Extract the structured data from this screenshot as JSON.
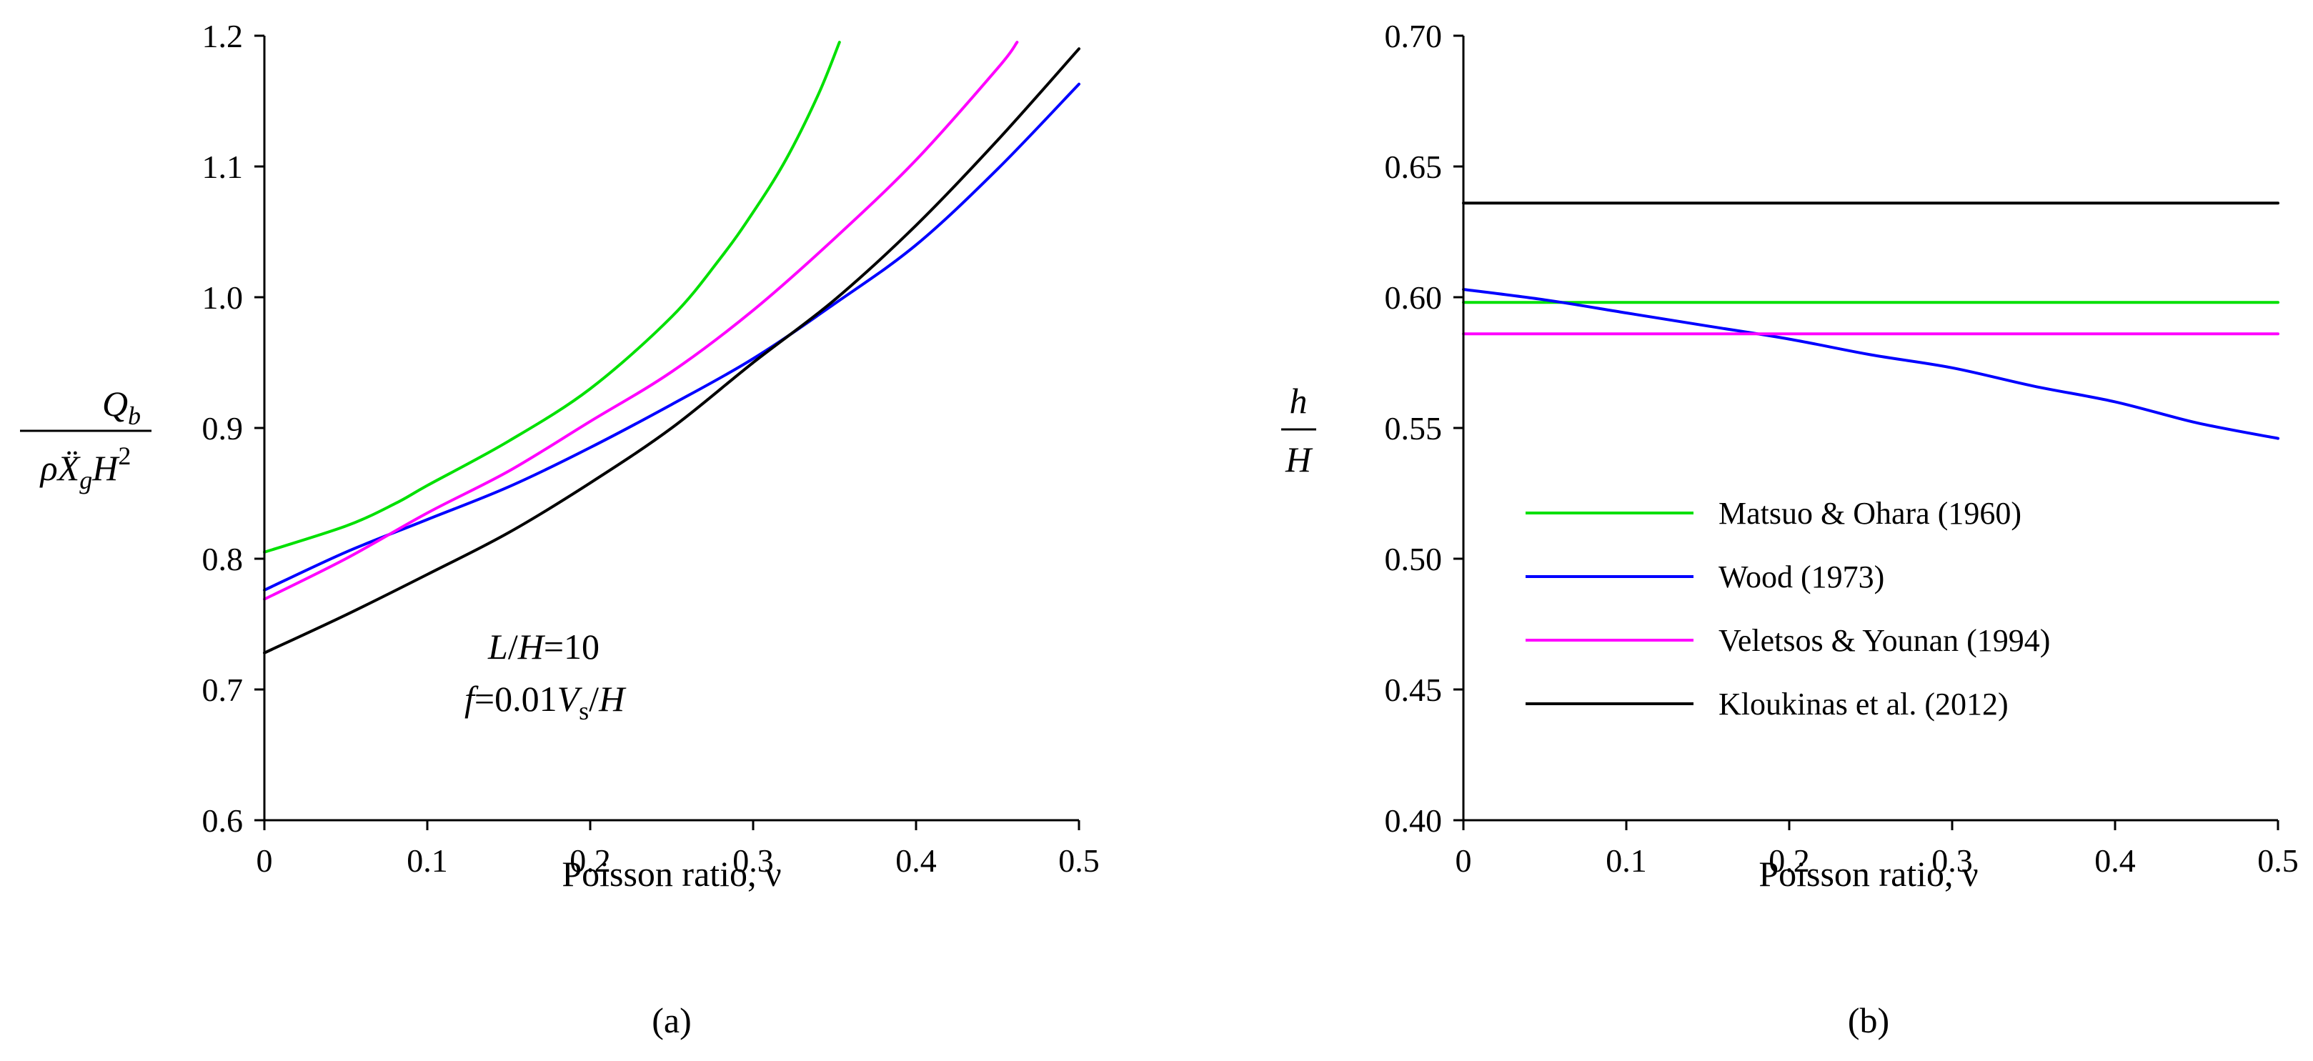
{
  "chart_data": [
    {
      "id": "a",
      "type": "line",
      "caption": "(a)",
      "xlabel": "Poisson ratio, ν",
      "ylabel": {
        "numerator": "Qb",
        "denominator": "ρẌgH2",
        "num_main": "Q",
        "num_sub": "b",
        "den_main1": "ρẌ",
        "den_sub": "g",
        "den_main2": "H",
        "den_sup": "2"
      },
      "xlim": [
        0,
        0.5
      ],
      "ylim": [
        0.6,
        1.2
      ],
      "xticks": [
        0,
        0.1,
        0.2,
        0.3,
        0.4,
        0.5
      ],
      "xtick_labels": [
        "0",
        "0.1",
        "0.2",
        "0.3",
        "0.4",
        "0.5"
      ],
      "yticks": [
        0.6,
        0.7,
        0.8,
        0.9,
        1.0,
        1.1,
        1.2
      ],
      "ytick_labels": [
        "0.6",
        "0.7",
        "0.8",
        "0.9",
        "1.0",
        "1.1",
        "1.2"
      ],
      "annotations": {
        "line1": {
          "italic1": "L",
          "t1": "/",
          "italic2": "H",
          "t2": "=10"
        },
        "line2": {
          "italic1": "f",
          "t1": "=0.01",
          "italic2": "V",
          "sub": "s",
          "t2": "/",
          "italic3": "H"
        }
      },
      "series": [
        {
          "name": "Matsuo & Ohara (1960)",
          "color": "#00e000",
          "x": [
            0,
            0.05,
            0.08,
            0.1,
            0.15,
            0.2,
            0.25,
            0.28,
            0.3,
            0.32,
            0.34,
            0.353
          ],
          "y": [
            0.805,
            0.825,
            0.842,
            0.856,
            0.89,
            0.93,
            0.985,
            1.03,
            1.065,
            1.105,
            1.155,
            1.195
          ]
        },
        {
          "name": "Wood (1973)",
          "color": "#0000ff",
          "x": [
            0,
            0.05,
            0.1,
            0.15,
            0.2,
            0.25,
            0.3,
            0.35,
            0.4,
            0.45,
            0.5
          ],
          "y": [
            0.776,
            0.805,
            0.83,
            0.855,
            0.885,
            0.918,
            0.953,
            0.995,
            1.04,
            1.098,
            1.163
          ]
        },
        {
          "name": "Veletsos & Younan (1994)",
          "color": "#ff00ff",
          "x": [
            0,
            0.05,
            0.1,
            0.15,
            0.2,
            0.25,
            0.3,
            0.35,
            0.4,
            0.45,
            0.462
          ],
          "y": [
            0.769,
            0.8,
            0.835,
            0.867,
            0.905,
            0.943,
            0.99,
            1.045,
            1.105,
            1.175,
            1.195
          ]
        },
        {
          "name": "Kloukinas et al. (2012)",
          "color": "#000000",
          "x": [
            0,
            0.05,
            0.1,
            0.15,
            0.2,
            0.25,
            0.3,
            0.35,
            0.4,
            0.45,
            0.5
          ],
          "y": [
            0.728,
            0.757,
            0.788,
            0.82,
            0.858,
            0.9,
            0.95,
            0.998,
            1.055,
            1.12,
            1.19
          ]
        }
      ]
    },
    {
      "id": "b",
      "type": "line",
      "caption": "(b)",
      "xlabel": "Poisson ratio, ν",
      "ylabel": {
        "numerator": "h",
        "denominator": "H"
      },
      "xlim": [
        0,
        0.5
      ],
      "ylim": [
        0.4,
        0.7
      ],
      "xticks": [
        0,
        0.1,
        0.2,
        0.3,
        0.4,
        0.5
      ],
      "xtick_labels": [
        "0",
        "0.1",
        "0.2",
        "0.3",
        "0.4",
        "0.5"
      ],
      "yticks": [
        0.4,
        0.45,
        0.5,
        0.55,
        0.6,
        0.65,
        0.7
      ],
      "ytick_labels": [
        "0.40",
        "0.45",
        "0.50",
        "0.55",
        "0.60",
        "0.65",
        "0.70"
      ],
      "legend": {
        "position": "center-right",
        "entries": [
          "Matsuo & Ohara (1960)",
          "Wood (1973)",
          "Veletsos & Younan (1994)",
          "Kloukinas et al. (2012)"
        ]
      },
      "series": [
        {
          "name": "Matsuo & Ohara (1960)",
          "color": "#00e000",
          "x": [
            0,
            0.5
          ],
          "y": [
            0.598,
            0.598
          ]
        },
        {
          "name": "Wood (1973)",
          "color": "#0000ff",
          "x": [
            0,
            0.05,
            0.1,
            0.15,
            0.2,
            0.25,
            0.3,
            0.35,
            0.4,
            0.45,
            0.5
          ],
          "y": [
            0.603,
            0.599,
            0.594,
            0.589,
            0.584,
            0.578,
            0.573,
            0.566,
            0.56,
            0.552,
            0.546
          ]
        },
        {
          "name": "Veletsos & Younan (1994)",
          "color": "#ff00ff",
          "x": [
            0,
            0.5
          ],
          "y": [
            0.586,
            0.586
          ]
        },
        {
          "name": "Kloukinas et al. (2012)",
          "color": "#000000",
          "x": [
            0,
            0.5
          ],
          "y": [
            0.636,
            0.636
          ]
        }
      ]
    }
  ]
}
